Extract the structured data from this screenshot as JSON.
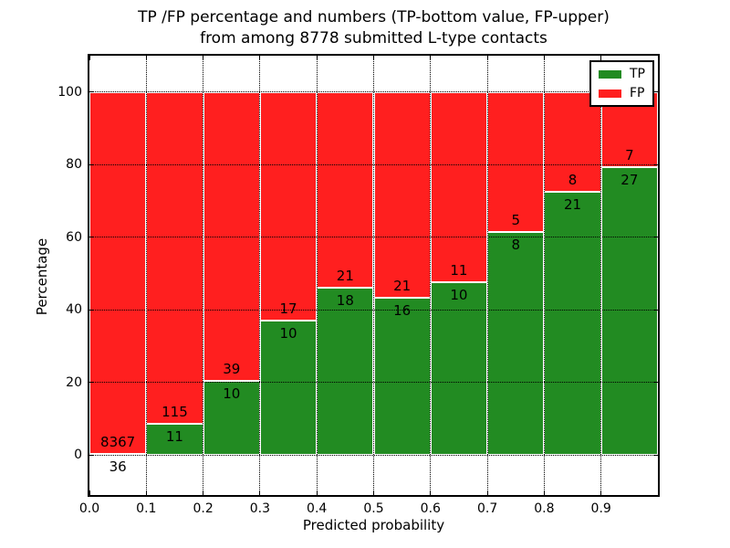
{
  "figure": {
    "title_line1": "TP /FP percentage and numbers (TP-bottom value, FP-upper)",
    "title_line2": "from among 8778 submitted L-type contacts"
  },
  "chart_data": {
    "type": "bar",
    "stacked": true,
    "normalized": "each bin stacked to 100 percent",
    "xlabel": "Predicted probability",
    "ylabel": "Percentage",
    "x_bins": [
      0.0,
      0.1,
      0.2,
      0.3,
      0.4,
      0.5,
      0.6,
      0.7,
      0.8,
      0.9
    ],
    "bin_width": 0.1,
    "series": [
      {
        "name": "TP",
        "color": "#228b22",
        "counts": [
          36,
          11,
          10,
          10,
          18,
          16,
          10,
          8,
          21,
          27
        ]
      },
      {
        "name": "FP",
        "color": "#ff1f1f",
        "counts": [
          8367,
          115,
          39,
          17,
          21,
          21,
          11,
          5,
          8,
          7
        ]
      }
    ],
    "tp_percent": [
      0.43,
      8.73,
      20.41,
      37.04,
      46.15,
      43.24,
      47.62,
      61.54,
      72.41,
      79.41
    ],
    "xticks": [
      "0.0",
      "0.1",
      "0.2",
      "0.3",
      "0.4",
      "0.5",
      "0.6",
      "0.7",
      "0.8",
      "0.9"
    ],
    "yticks": [
      0,
      20,
      40,
      60,
      80,
      100
    ],
    "xlim": [
      0.0,
      1.0
    ],
    "ylim": [
      -11,
      110
    ],
    "grid": true,
    "grid_style": "dotted",
    "legend": {
      "position": "upper right",
      "entries": [
        {
          "label": "TP",
          "color": "#228b22"
        },
        {
          "label": "FP",
          "color": "#ff1f1f"
        }
      ]
    }
  }
}
